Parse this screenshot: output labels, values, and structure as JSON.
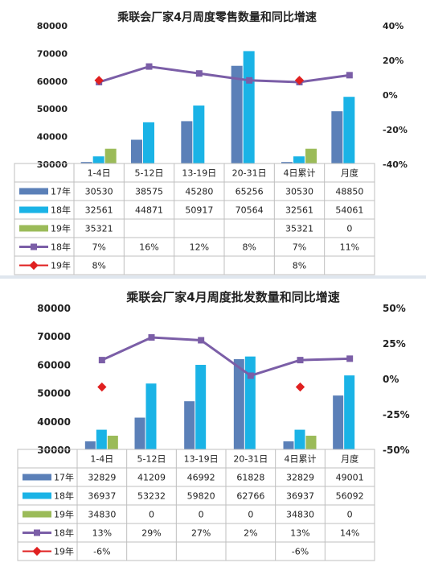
{
  "chart_data": [
    {
      "type": "bar",
      "title": "乘联会厂家4月周度零售数量和同比增速",
      "categories": [
        "1-4日",
        "5-12日",
        "13-19日",
        "20-31日",
        "4日累计",
        "月度"
      ],
      "ylim": [
        30000,
        80000
      ],
      "yticks": [
        "80000",
        "70000",
        "60000",
        "50000",
        "40000",
        "30000"
      ],
      "y2lim": [
        -40,
        40
      ],
      "y2ticks": [
        "40%",
        "20%",
        "0%",
        "-20%",
        "-40%"
      ],
      "series": [
        {
          "name": "17年",
          "kind": "bar",
          "color": "#5b80b8",
          "values": [
            30530,
            38575,
            45280,
            65256,
            30530,
            48850
          ],
          "labels": [
            "30530",
            "38575",
            "45280",
            "65256",
            "30530",
            "48850"
          ]
        },
        {
          "name": "18年",
          "kind": "bar",
          "color": "#1ab3e6",
          "values": [
            32561,
            44871,
            50917,
            70564,
            32561,
            54061
          ],
          "labels": [
            "32561",
            "44871",
            "50917",
            "70564",
            "32561",
            "54061"
          ]
        },
        {
          "name": "19年",
          "kind": "bar",
          "color": "#9bbb59",
          "values": [
            35321,
            null,
            null,
            null,
            35321,
            0
          ],
          "labels": [
            "35321",
            "",
            "",
            "",
            "35321",
            "0"
          ]
        },
        {
          "name": "18年",
          "kind": "line",
          "color": "#7b5ea7",
          "values": [
            7,
            16,
            12,
            8,
            7,
            11
          ],
          "labels": [
            "7%",
            "16%",
            "12%",
            "8%",
            "7%",
            "11%"
          ]
        },
        {
          "name": "19年",
          "kind": "line",
          "color": "#e02020",
          "values": [
            8,
            null,
            null,
            null,
            8,
            null
          ],
          "labels": [
            "8%",
            "",
            "",
            "",
            "8%",
            ""
          ]
        }
      ]
    },
    {
      "type": "bar",
      "title": "乘联会厂家4月周度批发数量和同比增速",
      "categories": [
        "1-4日",
        "5-12日",
        "13-19日",
        "20-31日",
        "4日累计",
        "月度"
      ],
      "ylim": [
        30000,
        80000
      ],
      "yticks": [
        "80000",
        "70000",
        "60000",
        "50000",
        "40000",
        "30000"
      ],
      "y2lim": [
        -50,
        50
      ],
      "y2ticks": [
        "50%",
        "25%",
        "0%",
        "-25%",
        "-50%"
      ],
      "series": [
        {
          "name": "17年",
          "kind": "bar",
          "color": "#5b80b8",
          "values": [
            32829,
            41209,
            46992,
            61828,
            32829,
            49001
          ],
          "labels": [
            "32829",
            "41209",
            "46992",
            "61828",
            "32829",
            "49001"
          ]
        },
        {
          "name": "18年",
          "kind": "bar",
          "color": "#1ab3e6",
          "values": [
            36937,
            53232,
            59820,
            62766,
            36937,
            56092
          ],
          "labels": [
            "36937",
            "53232",
            "59820",
            "62766",
            "36937",
            "56092"
          ]
        },
        {
          "name": "19年",
          "kind": "bar",
          "color": "#9bbb59",
          "values": [
            34830,
            0,
            0,
            0,
            34830,
            0
          ],
          "labels": [
            "34830",
            "0",
            "0",
            "0",
            "34830",
            "0"
          ]
        },
        {
          "name": "18年",
          "kind": "line",
          "color": "#7b5ea7",
          "values": [
            13,
            29,
            27,
            2,
            13,
            14
          ],
          "labels": [
            "13%",
            "29%",
            "27%",
            "2%",
            "13%",
            "14%"
          ]
        },
        {
          "name": "19年",
          "kind": "line",
          "color": "#e02020",
          "values": [
            -6,
            null,
            null,
            null,
            -6,
            null
          ],
          "labels": [
            "-6%",
            "",
            "",
            "",
            "-6%",
            ""
          ]
        }
      ]
    }
  ]
}
